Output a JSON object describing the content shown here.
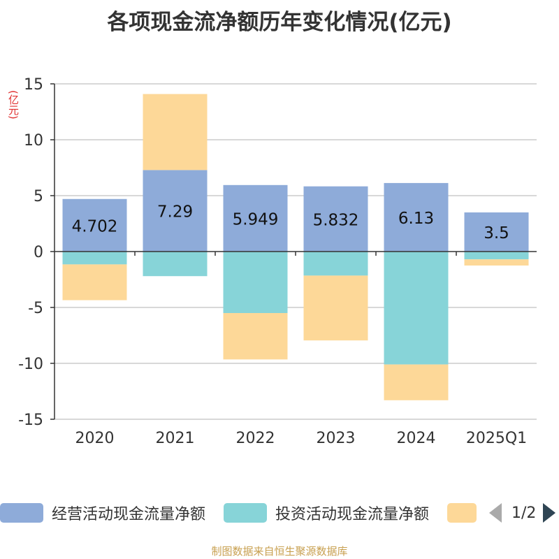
{
  "title": "各项现金流净额历年变化情况(亿元)",
  "source": "制图数据来自恒生聚源数据库",
  "pager": {
    "text": "1/2"
  },
  "chart_data": {
    "type": "bar",
    "stacked": true,
    "unit": "(亿元)",
    "categories": [
      "2020",
      "2021",
      "2022",
      "2023",
      "2024",
      "2025Q1"
    ],
    "ylim": [
      -15,
      15
    ],
    "yticks": [
      15,
      10,
      5,
      0,
      -5,
      -10,
      -15
    ],
    "grid": true,
    "legend_position": "bottom",
    "series": [
      {
        "name": "经营活动现金流量净额",
        "color": "#8eabd9",
        "values": [
          4.702,
          7.29,
          5.949,
          5.832,
          6.13,
          3.5
        ],
        "labels": [
          "4.702",
          "7.29",
          "5.949",
          "5.832",
          "6.13",
          "3.5"
        ]
      },
      {
        "name": "投资活动现金流量净额",
        "color": "#87d4d8",
        "values": [
          -1.15,
          -2.2,
          -5.5,
          -2.15,
          -10.1,
          -0.7
        ]
      },
      {
        "name": "",
        "color": "#fdd898",
        "values": [
          -3.2,
          6.8,
          -4.15,
          -5.8,
          -3.2,
          -0.55
        ]
      }
    ]
  }
}
